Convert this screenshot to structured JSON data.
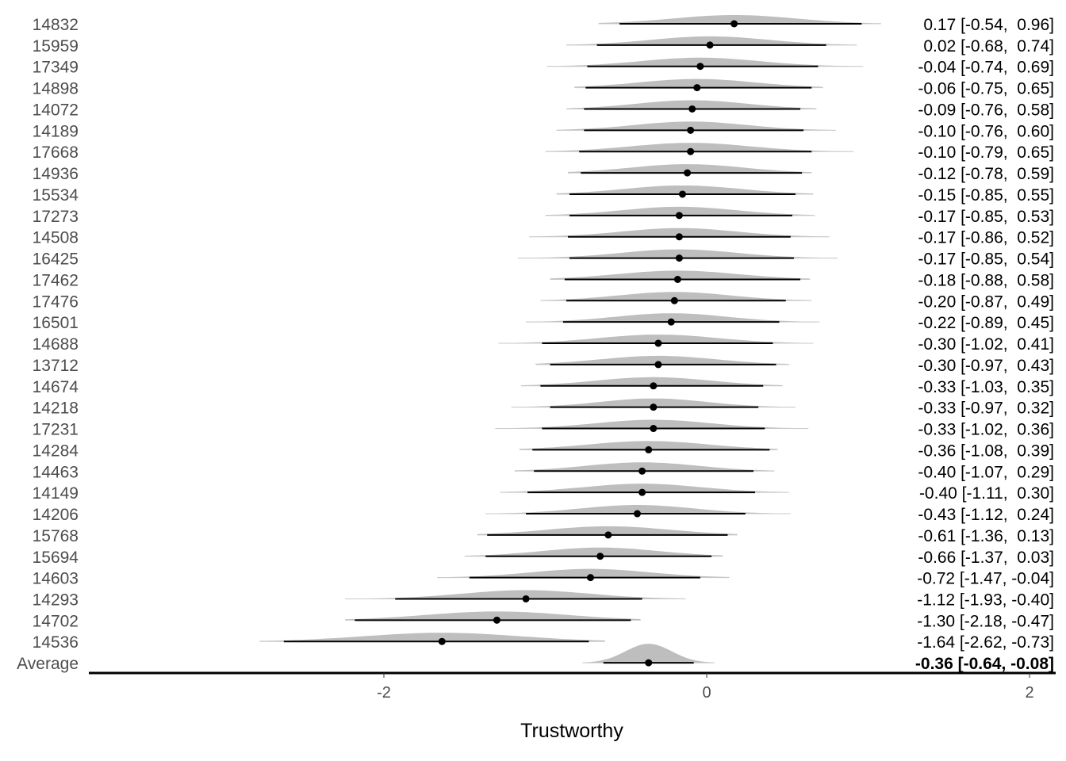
{
  "chart_data": {
    "type": "forest",
    "xlabel": "Trustworthy",
    "xlim": [
      -3.85,
      2.1
    ],
    "xticks": [
      -2,
      0,
      2
    ],
    "grid": false,
    "colors": {
      "density": "#bebebe",
      "outer_interval": "#c8c8c8",
      "interval": "#000000",
      "point": "#000000",
      "axis": "#000000"
    },
    "rows": [
      {
        "label": "14832",
        "mean": 0.17,
        "lower": -0.54,
        "upper": 0.96,
        "text": "0.17 [-0.54,  0.96]",
        "outer": [
          -0.67,
          1.08
        ]
      },
      {
        "label": "15959",
        "mean": 0.02,
        "lower": -0.68,
        "upper": 0.74,
        "text": "0.02 [-0.68,  0.74]",
        "outer": [
          -0.87,
          0.93
        ]
      },
      {
        "label": "17349",
        "mean": -0.04,
        "lower": -0.74,
        "upper": 0.69,
        "text": "-0.04 [-0.74,  0.69]",
        "outer": [
          -0.99,
          0.97
        ]
      },
      {
        "label": "14898",
        "mean": -0.06,
        "lower": -0.75,
        "upper": 0.65,
        "text": "-0.06 [-0.75,  0.65]",
        "outer": [
          -0.82,
          0.72
        ]
      },
      {
        "label": "14072",
        "mean": -0.09,
        "lower": -0.76,
        "upper": 0.58,
        "text": "-0.09 [-0.76,  0.58]",
        "outer": [
          -0.87,
          0.68
        ]
      },
      {
        "label": "14189",
        "mean": -0.1,
        "lower": -0.76,
        "upper": 0.6,
        "text": "-0.10 [-0.76,  0.60]",
        "outer": [
          -0.93,
          0.8
        ]
      },
      {
        "label": "17668",
        "mean": -0.1,
        "lower": -0.79,
        "upper": 0.65,
        "text": "-0.10 [-0.79,  0.65]",
        "outer": [
          -1.0,
          0.91
        ]
      },
      {
        "label": "14936",
        "mean": -0.12,
        "lower": -0.78,
        "upper": 0.59,
        "text": "-0.12 [-0.78,  0.59]",
        "outer": [
          -0.86,
          0.65
        ]
      },
      {
        "label": "15534",
        "mean": -0.15,
        "lower": -0.85,
        "upper": 0.55,
        "text": "-0.15 [-0.85,  0.55]",
        "outer": [
          -0.93,
          0.66
        ]
      },
      {
        "label": "17273",
        "mean": -0.17,
        "lower": -0.85,
        "upper": 0.53,
        "text": "-0.17 [-0.85,  0.53]",
        "outer": [
          -1.0,
          0.67
        ]
      },
      {
        "label": "14508",
        "mean": -0.17,
        "lower": -0.86,
        "upper": 0.52,
        "text": "-0.17 [-0.86,  0.52]",
        "outer": [
          -1.1,
          0.76
        ]
      },
      {
        "label": "16425",
        "mean": -0.17,
        "lower": -0.85,
        "upper": 0.54,
        "text": "-0.17 [-0.85,  0.54]",
        "outer": [
          -1.17,
          0.81
        ]
      },
      {
        "label": "17462",
        "mean": -0.18,
        "lower": -0.88,
        "upper": 0.58,
        "text": "-0.18 [-0.88,  0.58]",
        "outer": [
          -0.97,
          0.64
        ]
      },
      {
        "label": "17476",
        "mean": -0.2,
        "lower": -0.87,
        "upper": 0.49,
        "text": "-0.20 [-0.87,  0.49]",
        "outer": [
          -1.03,
          0.65
        ]
      },
      {
        "label": "16501",
        "mean": -0.22,
        "lower": -0.89,
        "upper": 0.45,
        "text": "-0.22 [-0.89,  0.45]",
        "outer": [
          -1.12,
          0.7
        ]
      },
      {
        "label": "14688",
        "mean": -0.3,
        "lower": -1.02,
        "upper": 0.41,
        "text": "-0.30 [-1.02,  0.41]",
        "outer": [
          -1.29,
          0.66
        ]
      },
      {
        "label": "13712",
        "mean": -0.3,
        "lower": -0.97,
        "upper": 0.43,
        "text": "-0.30 [-0.97,  0.43]",
        "outer": [
          -1.06,
          0.51
        ]
      },
      {
        "label": "14674",
        "mean": -0.33,
        "lower": -1.03,
        "upper": 0.35,
        "text": "-0.33 [-1.03,  0.35]",
        "outer": [
          -1.15,
          0.47
        ]
      },
      {
        "label": "14218",
        "mean": -0.33,
        "lower": -0.97,
        "upper": 0.32,
        "text": "-0.33 [-0.97,  0.32]",
        "outer": [
          -1.21,
          0.55
        ]
      },
      {
        "label": "17231",
        "mean": -0.33,
        "lower": -1.02,
        "upper": 0.36,
        "text": "-0.33 [-1.02,  0.36]",
        "outer": [
          -1.31,
          0.63
        ]
      },
      {
        "label": "14284",
        "mean": -0.36,
        "lower": -1.08,
        "upper": 0.39,
        "text": "-0.36 [-1.08,  0.39]",
        "outer": [
          -1.16,
          0.44
        ]
      },
      {
        "label": "14463",
        "mean": -0.4,
        "lower": -1.07,
        "upper": 0.29,
        "text": "-0.40 [-1.07,  0.29]",
        "outer": [
          -1.19,
          0.42
        ]
      },
      {
        "label": "14149",
        "mean": -0.4,
        "lower": -1.11,
        "upper": 0.3,
        "text": "-0.40 [-1.11,  0.30]",
        "outer": [
          -1.28,
          0.51
        ]
      },
      {
        "label": "14206",
        "mean": -0.43,
        "lower": -1.12,
        "upper": 0.24,
        "text": "-0.43 [-1.12,  0.24]",
        "outer": [
          -1.37,
          0.52
        ]
      },
      {
        "label": "15768",
        "mean": -0.61,
        "lower": -1.36,
        "upper": 0.13,
        "text": "-0.61 [-1.36,  0.13]",
        "outer": [
          -1.42,
          0.19
        ]
      },
      {
        "label": "15694",
        "mean": -0.66,
        "lower": -1.37,
        "upper": 0.03,
        "text": "-0.66 [-1.37,  0.03]",
        "outer": [
          -1.5,
          0.1
        ]
      },
      {
        "label": "14603",
        "mean": -0.72,
        "lower": -1.47,
        "upper": -0.04,
        "text": "-0.72 [-1.47, -0.04]",
        "outer": [
          -1.67,
          0.14
        ]
      },
      {
        "label": "14293",
        "mean": -1.12,
        "lower": -1.93,
        "upper": -0.4,
        "text": "-1.12 [-1.93, -0.40]",
        "outer": [
          -2.24,
          -0.13
        ]
      },
      {
        "label": "14702",
        "mean": -1.3,
        "lower": -2.18,
        "upper": -0.47,
        "text": "-1.30 [-2.18, -0.47]",
        "outer": [
          -2.24,
          -0.41
        ]
      },
      {
        "label": "14536",
        "mean": -1.64,
        "lower": -2.62,
        "upper": -0.73,
        "text": "-1.64 [-2.62, -0.73]",
        "outer": [
          -2.77,
          -0.63
        ]
      },
      {
        "label": "Average",
        "mean": -0.36,
        "lower": -0.64,
        "upper": -0.08,
        "text": "-0.36 [-0.64, -0.08]",
        "outer": [
          -0.77,
          0.05
        ],
        "bold": true
      }
    ]
  }
}
